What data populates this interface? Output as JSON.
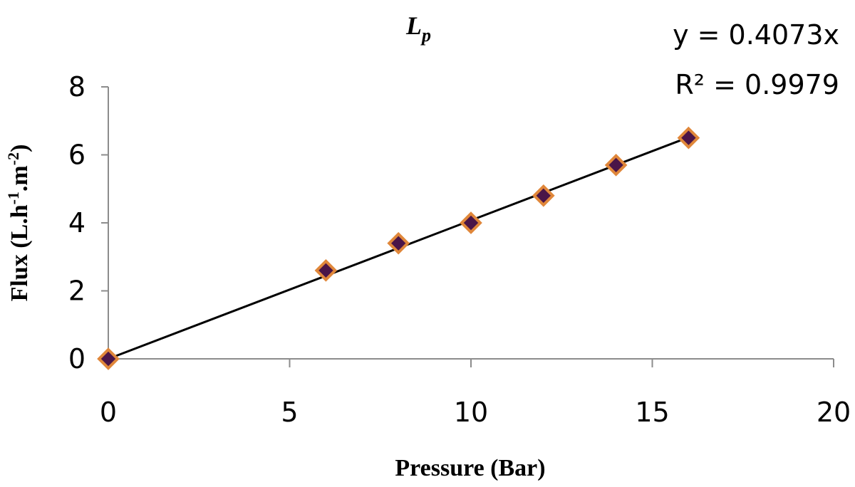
{
  "chart_data": {
    "type": "scatter",
    "title": "L",
    "title_subscript": "p",
    "xlabel": "Pressure (Bar)",
    "ylabel": {
      "parts": [
        "Flux (L.h",
        "-1",
        ".m",
        "-2",
        ")"
      ]
    },
    "xlim": [
      0,
      20
    ],
    "ylim": [
      0,
      8
    ],
    "x_ticks": [
      0,
      5,
      10,
      15,
      20
    ],
    "y_ticks": [
      0,
      2,
      4,
      6,
      8
    ],
    "grid": false,
    "series": [
      {
        "x": [
          0,
          6,
          8,
          10,
          12,
          14,
          16
        ],
        "y": [
          0,
          2.6,
          3.4,
          4.0,
          4.8,
          5.7,
          6.5
        ],
        "marker": "diamond",
        "marker_fill": "#4a1548",
        "marker_edge": "#e0873a"
      }
    ],
    "trendline": {
      "type": "linear",
      "slope": 0.4073,
      "intercept": 0,
      "x_range": [
        0,
        16
      ],
      "color": "#000000",
      "equation_text": "y = 0.4073x",
      "r2_text": "R² = 0.9979"
    }
  }
}
